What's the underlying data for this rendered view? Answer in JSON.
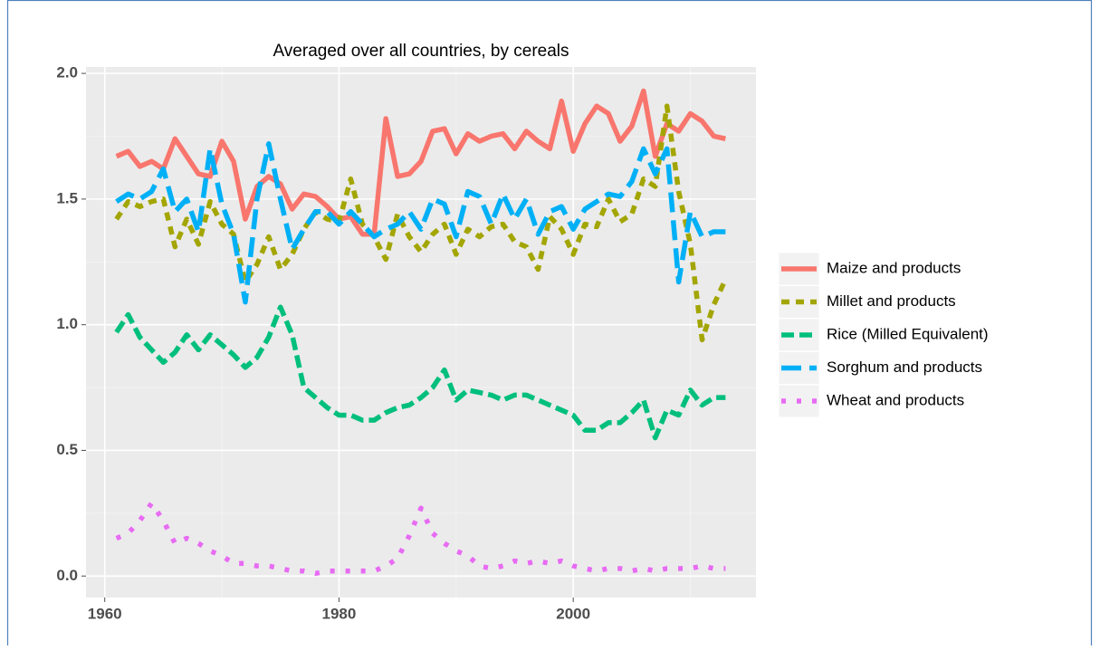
{
  "chart_data": {
    "type": "line",
    "title": "Averaged over all countries, by cereals",
    "x": [
      1961,
      1962,
      1963,
      1964,
      1965,
      1966,
      1967,
      1968,
      1969,
      1970,
      1971,
      1972,
      1973,
      1974,
      1975,
      1976,
      1977,
      1978,
      1979,
      1980,
      1981,
      1982,
      1983,
      1984,
      1985,
      1986,
      1987,
      1988,
      1989,
      1990,
      1991,
      1992,
      1993,
      1994,
      1995,
      1996,
      1997,
      1998,
      1999,
      2000,
      2001,
      2002,
      2003,
      2004,
      2005,
      2006,
      2007,
      2008,
      2009,
      2010,
      2011,
      2012,
      2013
    ],
    "series": [
      {
        "name": "Maize and products",
        "color": "#f8766d",
        "dash": "none",
        "values": [
          1.67,
          1.69,
          1.63,
          1.65,
          1.62,
          1.74,
          1.67,
          1.6,
          1.59,
          1.73,
          1.65,
          1.42,
          1.55,
          1.59,
          1.56,
          1.46,
          1.52,
          1.51,
          1.47,
          1.42,
          1.43,
          1.36,
          1.36,
          1.82,
          1.59,
          1.6,
          1.65,
          1.77,
          1.78,
          1.68,
          1.76,
          1.73,
          1.75,
          1.76,
          1.7,
          1.77,
          1.73,
          1.7,
          1.89,
          1.69,
          1.8,
          1.87,
          1.84,
          1.73,
          1.79,
          1.93,
          1.67,
          1.8,
          1.77,
          1.84,
          1.81,
          1.75,
          1.74
        ]
      },
      {
        "name": "Millet and products",
        "color": "#a3a500",
        "dash": "9,7",
        "values": [
          1.42,
          1.49,
          1.47,
          1.49,
          1.5,
          1.31,
          1.42,
          1.32,
          1.49,
          1.4,
          1.36,
          1.17,
          1.24,
          1.35,
          1.22,
          1.28,
          1.38,
          1.45,
          1.42,
          1.41,
          1.58,
          1.4,
          1.35,
          1.26,
          1.44,
          1.35,
          1.29,
          1.36,
          1.4,
          1.28,
          1.38,
          1.35,
          1.39,
          1.4,
          1.33,
          1.31,
          1.22,
          1.43,
          1.38,
          1.28,
          1.4,
          1.39,
          1.5,
          1.41,
          1.44,
          1.58,
          1.55,
          1.87,
          1.53,
          1.32,
          0.94,
          1.08,
          1.18
        ]
      },
      {
        "name": "Rice (Milled Equivalent)",
        "color": "#00bf7d",
        "dash": "14,6",
        "values": [
          0.97,
          1.04,
          0.95,
          0.9,
          0.85,
          0.89,
          0.96,
          0.9,
          0.96,
          0.92,
          0.88,
          0.83,
          0.87,
          0.95,
          1.07,
          0.96,
          0.75,
          0.71,
          0.67,
          0.64,
          0.64,
          0.62,
          0.62,
          0.65,
          0.67,
          0.68,
          0.71,
          0.75,
          0.82,
          0.7,
          0.74,
          0.73,
          0.72,
          0.7,
          0.72,
          0.72,
          0.7,
          0.68,
          0.66,
          0.64,
          0.58,
          0.58,
          0.61,
          0.61,
          0.65,
          0.7,
          0.55,
          0.66,
          0.64,
          0.74,
          0.68,
          0.71,
          0.71
        ]
      },
      {
        "name": "Sorghum and products",
        "color": "#00b0f6",
        "dash": "22,9",
        "values": [
          1.49,
          1.52,
          1.5,
          1.53,
          1.62,
          1.45,
          1.5,
          1.37,
          1.7,
          1.48,
          1.36,
          1.09,
          1.5,
          1.72,
          1.5,
          1.3,
          1.38,
          1.45,
          1.45,
          1.4,
          1.45,
          1.4,
          1.35,
          1.38,
          1.4,
          1.45,
          1.38,
          1.5,
          1.48,
          1.35,
          1.53,
          1.51,
          1.4,
          1.52,
          1.42,
          1.5,
          1.36,
          1.45,
          1.47,
          1.38,
          1.46,
          1.49,
          1.52,
          1.51,
          1.57,
          1.7,
          1.6,
          1.7,
          1.17,
          1.45,
          1.35,
          1.37,
          1.37
        ]
      },
      {
        "name": "Wheat and products",
        "color": "#e76bf3",
        "dash": "5,12",
        "values": [
          0.15,
          0.17,
          0.22,
          0.29,
          0.22,
          0.13,
          0.15,
          0.13,
          0.1,
          0.08,
          0.05,
          0.05,
          0.04,
          0.04,
          0.03,
          0.02,
          0.02,
          0.01,
          0.02,
          0.02,
          0.02,
          0.02,
          0.02,
          0.04,
          0.07,
          0.16,
          0.27,
          0.17,
          0.13,
          0.1,
          0.08,
          0.04,
          0.03,
          0.04,
          0.06,
          0.05,
          0.06,
          0.05,
          0.06,
          0.04,
          0.03,
          0.02,
          0.03,
          0.03,
          0.02,
          0.03,
          0.02,
          0.03,
          0.03,
          0.03,
          0.04,
          0.03,
          0.03
        ]
      }
    ],
    "xlim": [
      1958.4,
      2015.6
    ],
    "xticks": [
      1960,
      1980,
      2000
    ],
    "ylim": [
      -0.0855,
      2.0255
    ],
    "yticks": [
      {
        "value": 0,
        "label": "0.0"
      },
      {
        "value": 0.5,
        "label": "0.5"
      },
      {
        "value": 1,
        "label": "1.0"
      },
      {
        "value": 1.5,
        "label": "1.5"
      },
      {
        "value": 2,
        "label": "2.0"
      }
    ],
    "grid": true,
    "legend": "right"
  }
}
